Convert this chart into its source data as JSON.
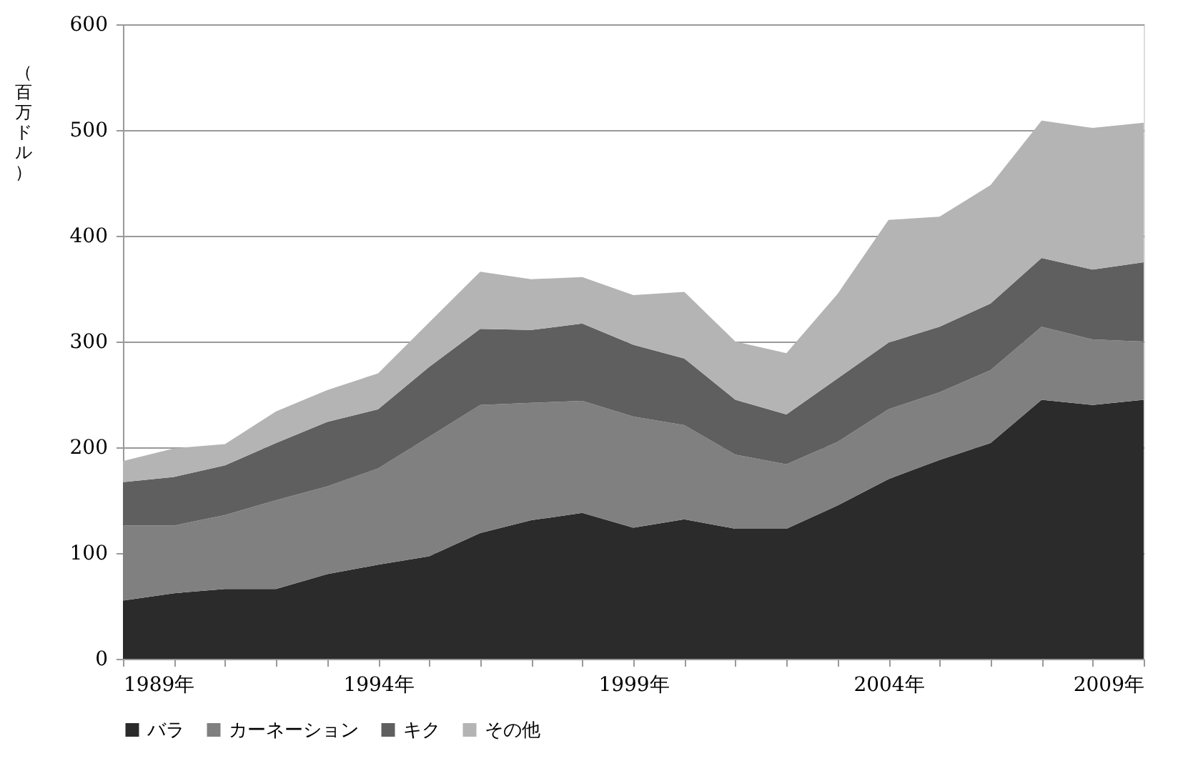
{
  "chart_data": {
    "type": "area",
    "stacked": true,
    "ylabel": "（百万ドル）",
    "x": [
      1989,
      1990,
      1991,
      1992,
      1993,
      1994,
      1995,
      1996,
      1997,
      1998,
      1999,
      2000,
      2001,
      2002,
      2003,
      2004,
      2005,
      2006,
      2007,
      2008,
      2009
    ],
    "series": [
      {
        "name": "バラ",
        "color": "#2b2b2b",
        "values": [
          55,
          62,
          66,
          66,
          80,
          89,
          97,
          119,
          131,
          138,
          124,
          132,
          123,
          123,
          145,
          170,
          188,
          204,
          245,
          240,
          245
        ]
      },
      {
        "name": "カーネーション",
        "color": "#808080",
        "values": [
          71,
          64,
          70,
          84,
          83,
          91,
          113,
          121,
          111,
          106,
          105,
          89,
          70,
          61,
          60,
          66,
          64,
          69,
          69,
          62,
          55
        ]
      },
      {
        "name": "キク",
        "color": "#5f5f5f",
        "values": [
          41,
          46,
          47,
          54,
          61,
          56,
          66,
          72,
          69,
          73,
          68,
          63,
          52,
          47,
          60,
          63,
          62,
          63,
          65,
          66,
          75
        ]
      },
      {
        "name": "その他",
        "color": "#b4b4b4",
        "values": [
          20,
          27,
          20,
          30,
          30,
          34,
          42,
          54,
          48,
          44,
          47,
          63,
          55,
          58,
          80,
          116,
          104,
          112,
          130,
          134,
          132
        ]
      }
    ],
    "xlim": [
      1989,
      2009
    ],
    "xticks": [
      {
        "value": 1989,
        "label": "1989年"
      },
      {
        "value": 1990,
        "label": null
      },
      {
        "value": 1991,
        "label": null
      },
      {
        "value": 1992,
        "label": null
      },
      {
        "value": 1993,
        "label": null
      },
      {
        "value": 1994,
        "label": "1994年"
      },
      {
        "value": 1995,
        "label": null
      },
      {
        "value": 1996,
        "label": null
      },
      {
        "value": 1997,
        "label": null
      },
      {
        "value": 1998,
        "label": null
      },
      {
        "value": 1999,
        "label": "1999年"
      },
      {
        "value": 2000,
        "label": null
      },
      {
        "value": 2001,
        "label": null
      },
      {
        "value": 2002,
        "label": null
      },
      {
        "value": 2003,
        "label": null
      },
      {
        "value": 2004,
        "label": "2004年"
      },
      {
        "value": 2005,
        "label": null
      },
      {
        "value": 2006,
        "label": null
      },
      {
        "value": 2007,
        "label": null
      },
      {
        "value": 2008,
        "label": null
      },
      {
        "value": 2009,
        "label": "2009年"
      }
    ],
    "ylim": [
      0,
      600
    ],
    "yticks": [
      0,
      100,
      200,
      300,
      400,
      500,
      600
    ],
    "grid": "y",
    "legend": "bottom"
  }
}
